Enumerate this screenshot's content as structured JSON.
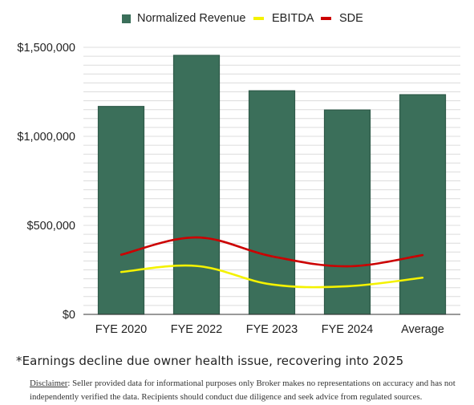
{
  "chart_data": {
    "type": "bar",
    "categories": [
      "FYE 2020",
      "FYE 2022",
      "FYE 2023",
      "FYE 2024",
      "Average"
    ],
    "series": [
      {
        "name": "Normalized Revenue",
        "kind": "bar",
        "color": "#3b6f5a",
        "values": [
          1168000,
          1455000,
          1256000,
          1148000,
          1234000
        ]
      },
      {
        "name": "EBITDA",
        "kind": "line",
        "color": "#f4f200",
        "values": [
          238000,
          272000,
          168000,
          158000,
          206000
        ]
      },
      {
        "name": "SDE",
        "kind": "line",
        "color": "#cc0000",
        "values": [
          335000,
          432000,
          326000,
          270000,
          333000
        ]
      }
    ],
    "yticks": [
      {
        "value": 0,
        "label": "$0"
      },
      {
        "value": 500000,
        "label": "$500,000"
      },
      {
        "value": 1000000,
        "label": "$1,000,000"
      },
      {
        "value": 1500000,
        "label": "$1,500,000"
      }
    ],
    "ylim": [
      0,
      1500000
    ],
    "title": "",
    "xlabel": "",
    "ylabel": "",
    "grid": true,
    "legend_position": "top"
  },
  "footnote": "*Earnings decline due owner health issue, recovering into 2025",
  "disclaimer": {
    "label": "Disclaimer",
    "text": ": Seller provided data for informational purposes only Broker makes no representations on accuracy and has not independently verified the data. Recipients should conduct due diligence and seek advice from regulated sources."
  }
}
